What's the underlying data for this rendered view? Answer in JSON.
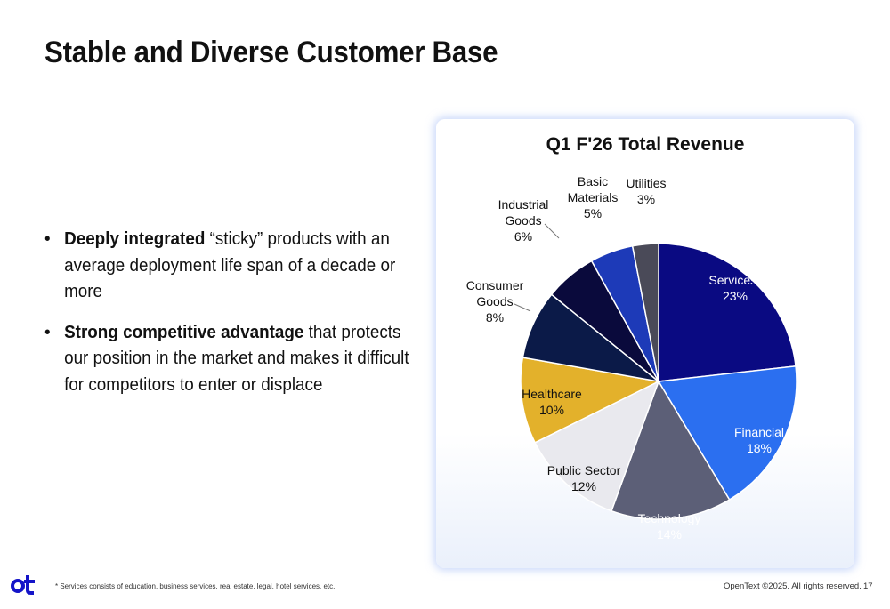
{
  "page": {
    "title": "Stable and Diverse Customer Base",
    "bullets": [
      {
        "bold": "Deeply integrated",
        "text": " “sticky” products with an average deployment life span of a decade or more"
      },
      {
        "bold": "Strong competitive advantage",
        "text": " that protects our position in the market and makes it difficult for competitors to enter or displace"
      }
    ],
    "bullet_symbol": "•",
    "footnote": "* Services consists of education, business services, real estate, legal, hotel services, etc.",
    "copyright": "OpenText ©2025. All rights reserved.",
    "page_number": "17",
    "logo_icon": "opentext-logo-icon",
    "brand_color": "#1414c8"
  },
  "chart_data": {
    "type": "pie",
    "title": "Q1 F'26 Total Revenue",
    "slices": [
      {
        "label": "Services*",
        "value": 23,
        "display": "23%",
        "color": "#0a0a82"
      },
      {
        "label": "Financial",
        "value": 18,
        "display": "18%",
        "color": "#2b6ff0"
      },
      {
        "label": "Technology",
        "value": 14,
        "display": "14%",
        "color": "#5c5f77"
      },
      {
        "label": "Public Sector",
        "value": 12,
        "display": "12%",
        "color": "#e9e9ee"
      },
      {
        "label": "Healthcare",
        "value": 10,
        "display": "10%",
        "color": "#e3b12b"
      },
      {
        "label": "Consumer Goods",
        "value": 8,
        "display": "8%",
        "color": "#0b1a48"
      },
      {
        "label": "Industrial Goods",
        "value": 6,
        "display": "6%",
        "color": "#0a0a3c"
      },
      {
        "label": "Basic Materials",
        "value": 5,
        "display": "5%",
        "color": "#1d3ab8"
      },
      {
        "label": "Utilities",
        "value": 3,
        "display": "3%",
        "color": "#4a4a58"
      }
    ],
    "start_angle_deg": 0,
    "direction": "clockwise",
    "legend": "none"
  }
}
